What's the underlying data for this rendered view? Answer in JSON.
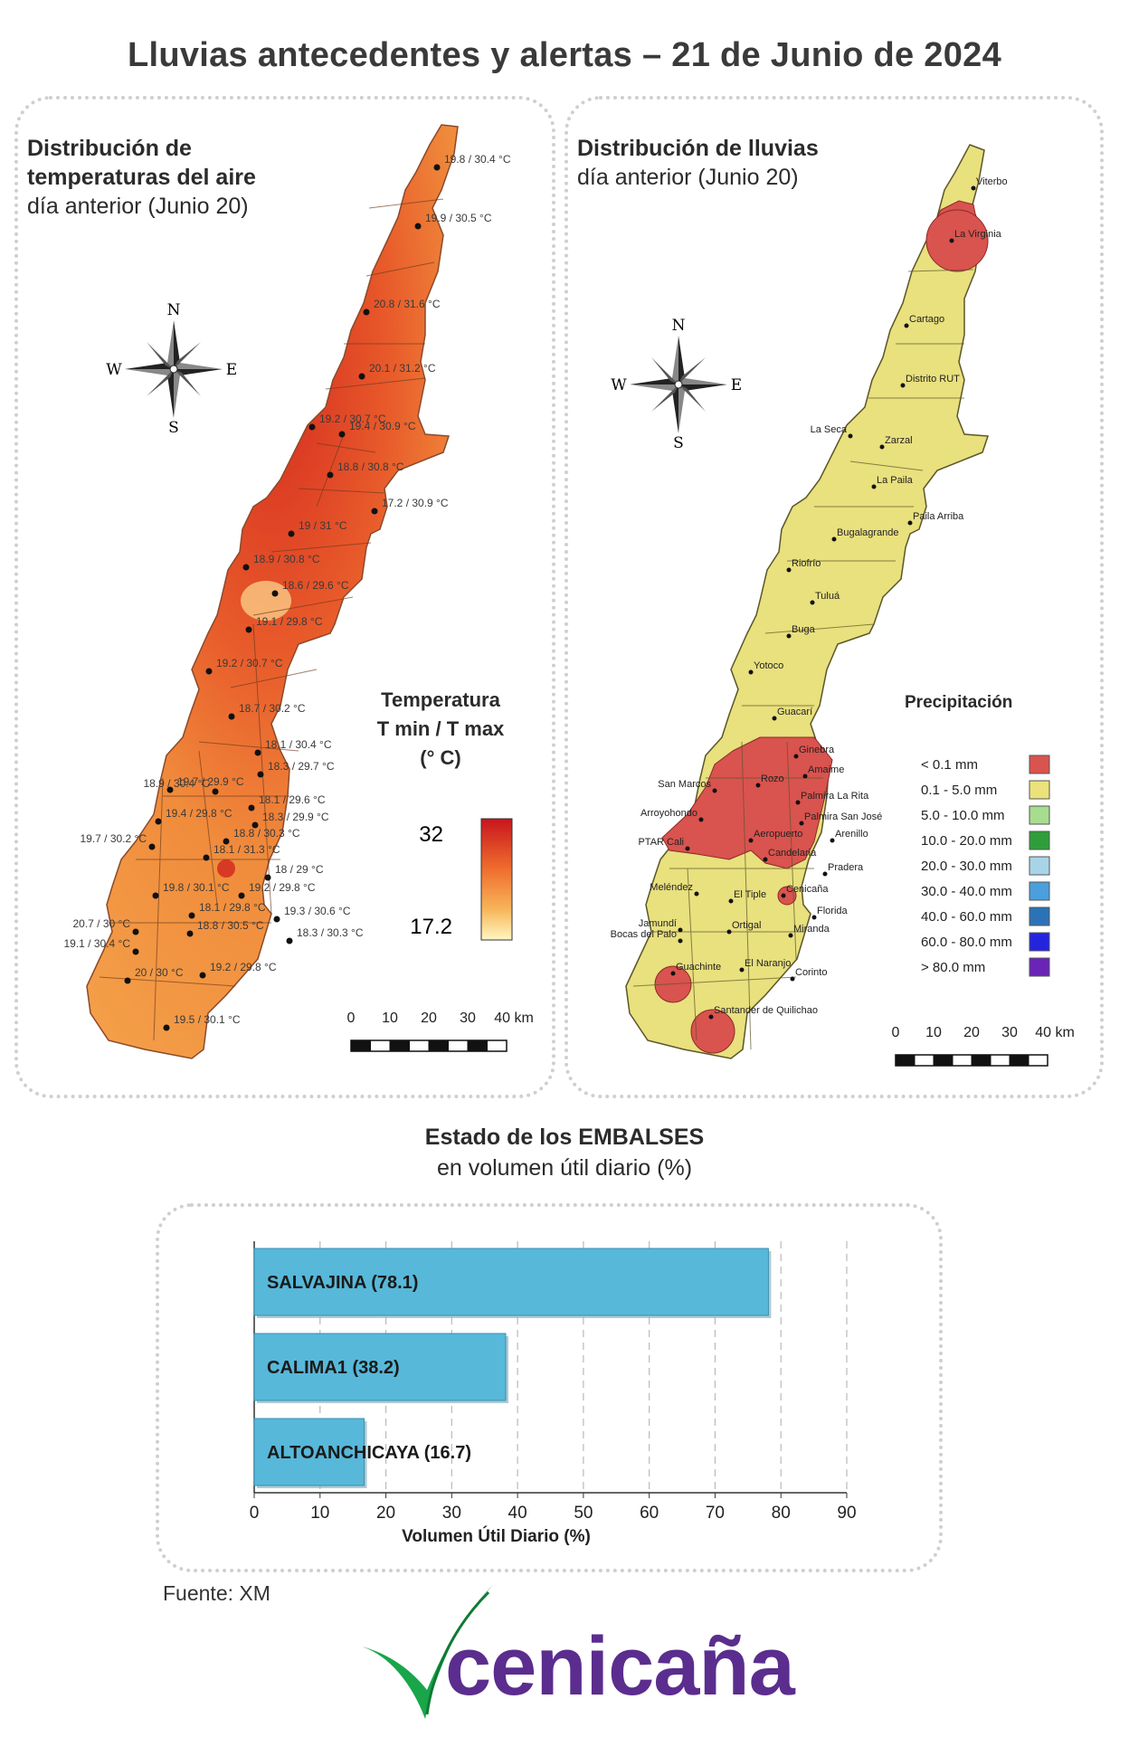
{
  "title": "Lluvias antecedentes y alertas – 21 de Junio de 2024",
  "temp_map": {
    "heading_line1": "Distribución de",
    "heading_line2": "temperaturas del aire",
    "subheading": "día anterior (Junio 20)",
    "legend_title_1": "Temperatura",
    "legend_title_2": "T min / T max",
    "legend_title_3": "(° C)",
    "legend_max": "32",
    "legend_min": "17.2",
    "colors": {
      "low": "#fff3b0",
      "mid": "#f4a24a",
      "high": "#d81f26"
    },
    "stations": [
      {
        "label": "19.8 / 30.4 °C"
      },
      {
        "label": "19.9 / 30.5 °C"
      },
      {
        "label": "20.8 / 31.6 °C"
      },
      {
        "label": "20.1 / 31.2 °C"
      },
      {
        "label": "19.2 / 30.7 °C"
      },
      {
        "label": "19.4 / 30.9 °C"
      },
      {
        "label": "18.8 / 30.8 °C"
      },
      {
        "label": "17.2 / 30.9 °C"
      },
      {
        "label": "19 / 31 °C"
      },
      {
        "label": "18.9 / 30.8 °C"
      },
      {
        "label": "18.6 / 29.6 °C"
      },
      {
        "label": "19.1 / 29.8 °C"
      },
      {
        "label": "19.2 / 30.7 °C"
      },
      {
        "label": "18.7 / 30.2 °C"
      },
      {
        "label": "18.1 / 30.4 °C"
      },
      {
        "label": "18.3 / 29.7 °C"
      },
      {
        "label": "19.7 / 29.9 °C"
      },
      {
        "label": "18.9 / 30.4 °C"
      },
      {
        "label": "18.1 / 29.6 °C"
      },
      {
        "label": "19.4 / 29.8 °C"
      },
      {
        "label": "18.3 / 29.9 °C"
      },
      {
        "label": "19.7 / 30.2 °C"
      },
      {
        "label": "18.8 / 30.3 °C"
      },
      {
        "label": "18.1 / 31.3 °C"
      },
      {
        "label": "18 / 29 °C"
      },
      {
        "label": "19.8 / 30.1 °C"
      },
      {
        "label": "19.2 / 29.8 °C"
      },
      {
        "label": "18.1 / 29.8 °C"
      },
      {
        "label": "19.3 / 30.6 °C"
      },
      {
        "label": "20.7 / 30 °C"
      },
      {
        "label": "18.8 / 30.5 °C"
      },
      {
        "label": "18.3 / 30.3 °C"
      },
      {
        "label": "19.1 / 30.4 °C"
      },
      {
        "label": "20 / 30 °C"
      },
      {
        "label": "19.2 / 29.8 °C"
      },
      {
        "label": "19.5 / 30.1 °C"
      }
    ]
  },
  "rain_map": {
    "heading_line1": "Distribución de lluvias",
    "subheading": "día anterior (Junio 20)",
    "legend_title": "Precipitación",
    "legend": [
      {
        "label": "< 0.1 mm",
        "color": "#d9534f"
      },
      {
        "label": "0.1 - 5.0 mm",
        "color": "#ebe27a"
      },
      {
        "label": "5.0 - 10.0 mm",
        "color": "#a8dc8e"
      },
      {
        "label": "10.0 - 20.0 mm",
        "color": "#2e9e3a"
      },
      {
        "label": "20.0 - 30.0 mm",
        "color": "#a9d4e8"
      },
      {
        "label": "30.0 - 40.0 mm",
        "color": "#4a9fdc"
      },
      {
        "label": "40.0 - 60.0 mm",
        "color": "#2c72b8"
      },
      {
        "label": "60.0 - 80.0 mm",
        "color": "#2424e0"
      },
      {
        "label": "> 80.0 mm",
        "color": "#6a24b8"
      }
    ],
    "towns": [
      "Viterbo",
      "La Virginia",
      "Cartago",
      "Distrito RUT",
      "La Seca",
      "Zarzal",
      "La Paila",
      "Paila Arriba",
      "Bugalagrande",
      "Riofrío",
      "Tuluá",
      "Buga",
      "Yotoco",
      "Guacarí",
      "Ginebra",
      "Amaime",
      "San Marcos",
      "Rozo",
      "Palmira La Rita",
      "Arroyohondo",
      "Palmira San José",
      "Aeropuerto",
      "Arenillo",
      "PTAR Cali",
      "Candelaria",
      "Pradera",
      "Meléndez",
      "El Tiple",
      "Cenicaña",
      "Florida",
      "Jamundí",
      "Bocas del Palo",
      "Ortigal",
      "Miranda",
      "Guachinte",
      "El Naranjo",
      "Corinto",
      "Santander de Quilichao"
    ]
  },
  "compass": {
    "n": "N",
    "s": "S",
    "e": "E",
    "w": "W"
  },
  "scale_labels": [
    "0",
    "10",
    "20",
    "30",
    "40 km"
  ],
  "reservoirs": {
    "title_line1": "Estado de los EMBALSES",
    "title_line2": "en volumen útil diario (%)",
    "chart_data": {
      "type": "bar",
      "orientation": "horizontal",
      "categories": [
        "SALVAJINA",
        "CALIMA1",
        "ALTOANCHICAYA"
      ],
      "bar_labels": [
        "SALVAJINA (78.1)",
        "CALIMA1 (38.2)",
        "ALTOANCHICAYA (16.7)"
      ],
      "values": [
        78.1,
        38.2,
        16.7
      ],
      "xlim": [
        0,
        90
      ],
      "xticks": [
        "0",
        "10",
        "20",
        "30",
        "40",
        "50",
        "60",
        "70",
        "80",
        "90"
      ],
      "xlabel": "Volumen Útil Diario (%)",
      "bar_color": "#57b8d9",
      "grid": "vertical dashed"
    }
  },
  "source": "Fuente: XM",
  "logo": {
    "text": "cenicaña",
    "brand_color": "#5b2d8e",
    "leaf_color": "#19a64a"
  }
}
